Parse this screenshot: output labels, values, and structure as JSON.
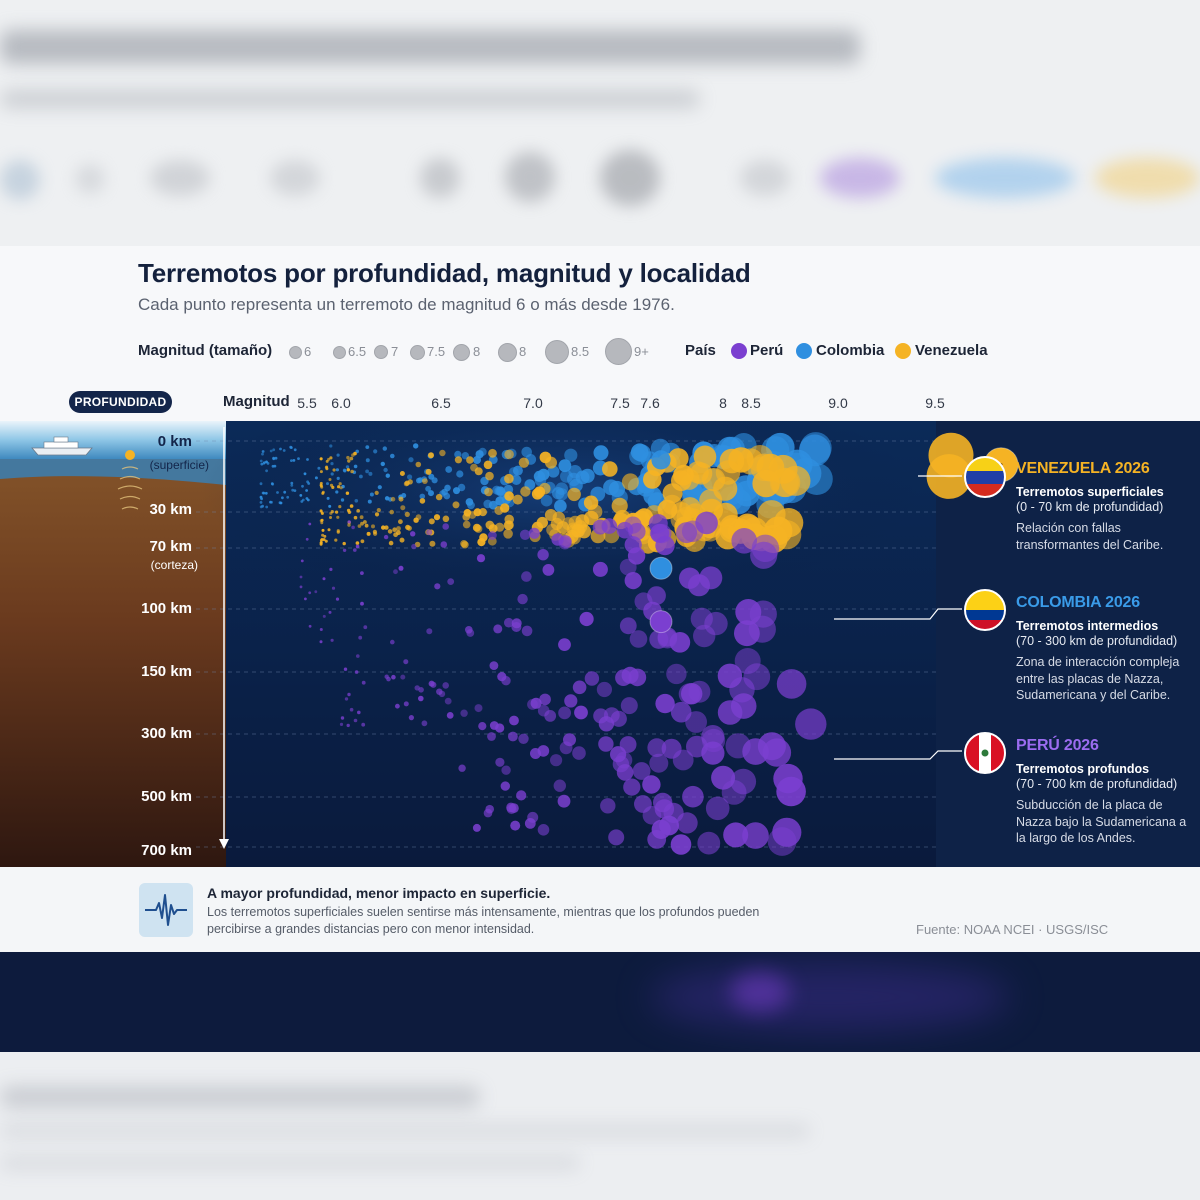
{
  "title": "Terremotos por profundidad, magnitud y localidad",
  "subtitle": "Cada punto representa un terremoto de magnitud 6 o más desde 1976.",
  "legend": {
    "size_label": "Magnitud (tamaño)",
    "sizes": [
      "6",
      "6.5",
      "7",
      "7.5",
      "8",
      "8",
      "8.5",
      "9+"
    ],
    "country_label": "País",
    "countries": [
      {
        "name": "Perú",
        "color": "#7b3fd0"
      },
      {
        "name": "Colombia",
        "color": "#2f8fe0"
      },
      {
        "name": "Venezuela",
        "color": "#f5b324"
      }
    ]
  },
  "depth_pill": "PROFUNDIDAD",
  "chart_data": {
    "type": "scatter",
    "xlabel": "Magnitud",
    "ylabel": "PROFUNDIDAD",
    "x_ticks": [
      "5.5",
      "6.0",
      "6.5",
      "7.0",
      "7.5",
      "7.6",
      "8",
      "8.5",
      "9.0",
      "9.5"
    ],
    "depth_labels": [
      {
        "km": "0 km",
        "note": "(superficie)"
      },
      {
        "km": "30 km",
        "note": ""
      },
      {
        "km": "70 km",
        "note": "(corteza)"
      },
      {
        "km": "100 km",
        "note": ""
      },
      {
        "km": "150 km",
        "note": ""
      },
      {
        "km": "300 km",
        "note": ""
      },
      {
        "km": "500 km",
        "note": ""
      },
      {
        "km": "700 km",
        "note": ""
      }
    ],
    "highlights": [
      {
        "country": "Venezuela",
        "magnitude": 9.3,
        "depth_km": 10
      },
      {
        "country": "Colombia",
        "magnitude": 7.6,
        "depth_km": 80
      },
      {
        "country": "Perú",
        "magnitude": 7.6,
        "depth_km": 110
      }
    ]
  },
  "callouts": [
    {
      "title": "VENEZUELA 2026",
      "color": "#f5b324",
      "headline": "Terremotos superficiales",
      "range": "(0 - 70 km de profundidad)",
      "description": "Relación con fallas transformantes del Caribe."
    },
    {
      "title": "COLOMBIA 2026",
      "color": "#3a9be8",
      "headline": "Terremotos intermedios",
      "range": "(70 - 300 km de profundidad)",
      "description": "Zona de interacción compleja entre las placas de Nazza, Sudamericana y del Caribe."
    },
    {
      "title": "PERÚ 2026",
      "color": "#9b6cf0",
      "headline": "Terremotos profundos",
      "range": "(70 - 700 km de profundidad)",
      "description": "Subducción de la placa de Nazza bajo la Sudamericana a la largo de los Andes."
    }
  ],
  "note": {
    "title": "A mayor profundidad, menor impacto en superficie.",
    "body": "Los terremotos superficiales suelen sentirse más intensamente, mientras que los profundos pueden percibirse a grandes distancias pero con menor intensidad."
  },
  "source": "Fuente: NOAA NCEI · USGS/ISC",
  "icons": [
    "ship-icon",
    "seismograph-icon",
    "flag-venezuela-icon",
    "flag-colombia-icon",
    "flag-peru-icon"
  ]
}
